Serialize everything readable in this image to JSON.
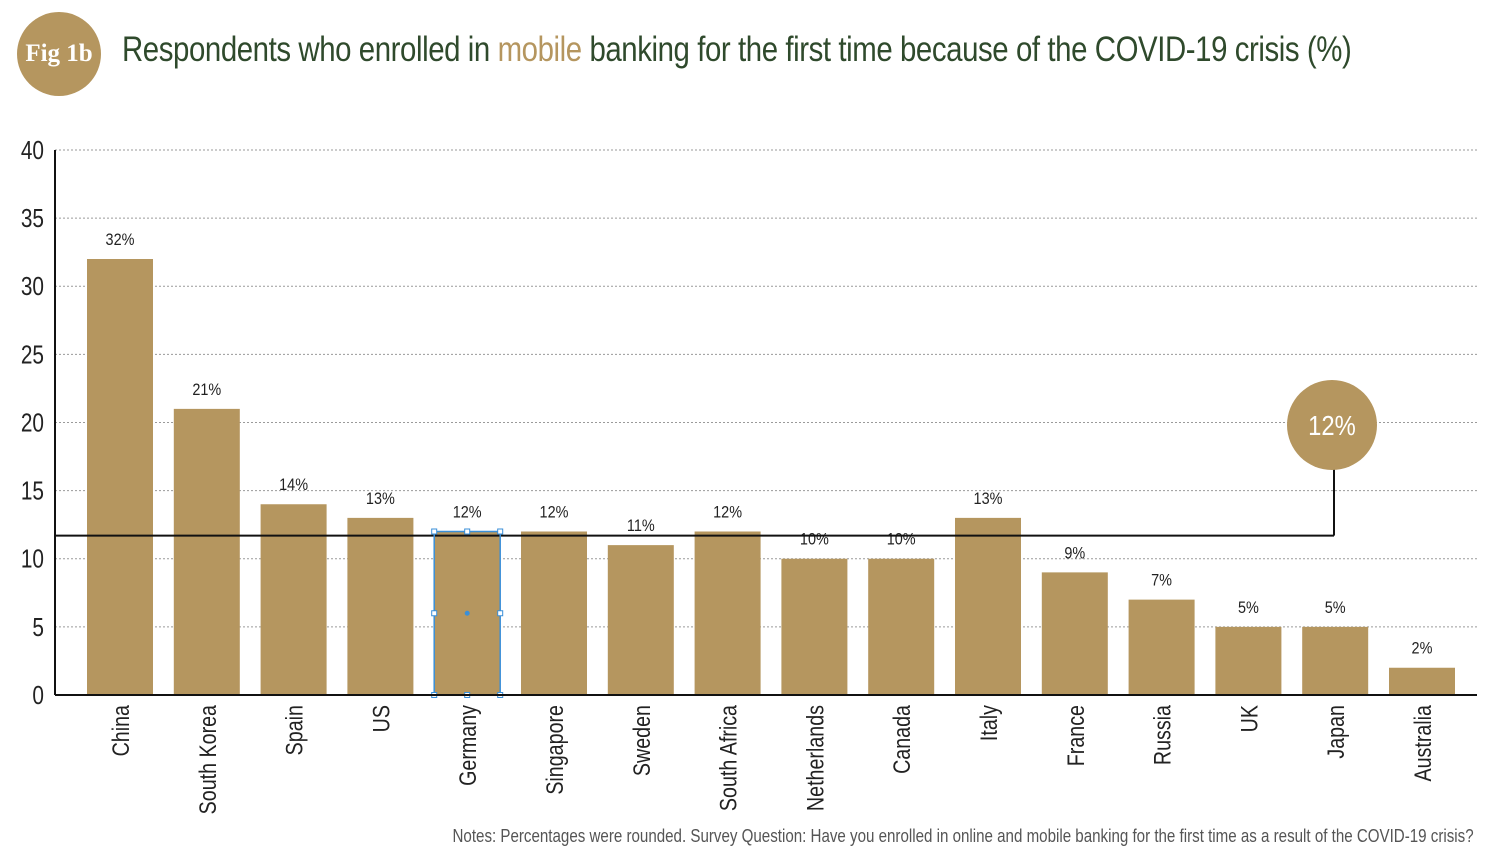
{
  "colors": {
    "accent": "#b5965f",
    "title": "#2f4a2c",
    "text": "#222222",
    "notes": "#555555",
    "line": "#111111",
    "grid": "#9a9a9a",
    "selection": "#3a8fd8"
  },
  "header": {
    "badge": "Fig 1b",
    "title_prefix": "Respondents who enrolled in ",
    "title_highlight": "mobile",
    "title_suffix": " banking for the first time because of the COVID-19 crisis (%)"
  },
  "chart_data": {
    "type": "bar",
    "title": "Respondents who enrolled in mobile banking for the first time because of the COVID-19 crisis (%)",
    "categories": [
      "China",
      "South Korea",
      "Spain",
      "US",
      "Germany",
      "Singapore",
      "Sweden",
      "South Africa",
      "Netherlands",
      "Canada",
      "Italy",
      "France",
      "Russia",
      "UK",
      "Japan",
      "Australia"
    ],
    "values": [
      32,
      21,
      14,
      13,
      12,
      12,
      11,
      12,
      10,
      10,
      13,
      9,
      7,
      5,
      5,
      2
    ],
    "value_labels": [
      "32%",
      "21%",
      "14%",
      "13%",
      "12%",
      "12%",
      "11%",
      "12%",
      "10%",
      "10%",
      "13%",
      "9%",
      "7%",
      "5%",
      "5%",
      "2%"
    ],
    "ylim": [
      0,
      40
    ],
    "yticks": [
      0,
      5,
      10,
      15,
      20,
      25,
      30,
      35,
      40
    ],
    "grid": true,
    "average": {
      "value": 11.7,
      "label": "12%"
    },
    "selected_category": "Germany"
  },
  "notes": "Notes: Percentages were rounded. Survey Question: Have you enrolled in online and mobile banking for the first time as a result of the COVID-19 crisis?"
}
